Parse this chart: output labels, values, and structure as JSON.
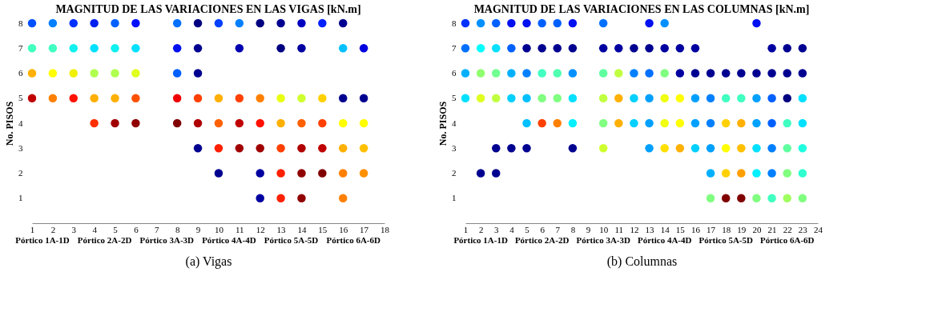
{
  "chart_data": [
    {
      "type": "scatter",
      "title": "MAGNITUD DE LAS VARIACIONES EN LAS VIGAS [kN.m]",
      "xlabel": "(a) Vigas",
      "ylabel": "No. PISOS",
      "xlim": [
        1,
        18
      ],
      "xticks": [
        1,
        2,
        3,
        4,
        5,
        6,
        7,
        8,
        9,
        10,
        11,
        12,
        13,
        14,
        15,
        16,
        17,
        18
      ],
      "ylim": [
        0,
        8
      ],
      "yticks": [
        1,
        2,
        3,
        4,
        5,
        6,
        7,
        8
      ],
      "grid": false,
      "marker": "circle",
      "annotations": [
        "Pórtico 1A-1D",
        "Pórtico 2A-2D",
        "Pórtico 3A-3D",
        "Pórtico 4A-4D",
        "Pórtico 5A-5D",
        "Pórtico 6A-6D"
      ],
      "series": [
        {
          "x": [
            1,
            1,
            1,
            1,
            2,
            2,
            2,
            2,
            3,
            3,
            3,
            3,
            4,
            4,
            4,
            4,
            4,
            5,
            5,
            5,
            5,
            5,
            6,
            6,
            6,
            6,
            6,
            8,
            8,
            8,
            8,
            8,
            9,
            9,
            9,
            9,
            9,
            9,
            10,
            10,
            10,
            10,
            10,
            11,
            11,
            11,
            11,
            11,
            12,
            12,
            12,
            12,
            12,
            12,
            13,
            13,
            13,
            13,
            13,
            13,
            13,
            14,
            14,
            14,
            14,
            14,
            14,
            14,
            15,
            15,
            15,
            15,
            15,
            16,
            16,
            16,
            16,
            16,
            16,
            16,
            17,
            17,
            17,
            17,
            17
          ],
          "values": [
            8,
            7,
            6,
            5,
            8,
            7,
            6,
            5,
            8,
            7,
            6,
            5,
            8,
            7,
            6,
            5,
            4,
            8,
            7,
            6,
            5,
            4,
            8,
            7,
            6,
            5,
            4,
            8,
            7,
            6,
            5,
            4,
            8,
            7,
            6,
            5,
            4,
            3,
            8,
            5,
            4,
            3,
            2,
            8,
            7,
            5,
            4,
            3,
            8,
            5,
            4,
            3,
            2,
            1,
            8,
            7,
            5,
            4,
            3,
            2,
            1,
            8,
            7,
            5,
            4,
            3,
            2,
            1,
            8,
            5,
            4,
            3,
            2,
            8,
            7,
            5,
            4,
            3,
            2,
            1,
            7,
            5,
            4,
            3,
            2
          ],
          "colors": [
            "#0050ff",
            "#40ffc0",
            "#ffb000",
            "#c00000",
            "#0080ff",
            "#40ffc0",
            "#ffff00",
            "#ff8000",
            "#0030ff",
            "#10f0f0",
            "#f0f000",
            "#ff1000",
            "#0020f0",
            "#00e0ff",
            "#b0ff50",
            "#ffb000",
            "#ff3000",
            "#0060ff",
            "#10f0f0",
            "#b0ff50",
            "#ffb000",
            "#a00000",
            "#0010ff",
            "#00e0ff",
            "#e0ff20",
            "#ff5000",
            "#900000",
            "#0070ff",
            "#0010f0",
            "#0060ff",
            "#f00000",
            "#800000",
            "#000080",
            "#000090",
            "#000090",
            "#ff4000",
            "#b00000",
            "#000090",
            "#0040ff",
            "#ffb000",
            "#ff6000",
            "#ff2000",
            "#000090",
            "#0080ff",
            "#0000b0",
            "#ff4000",
            "#c00000",
            "#a00000",
            "#000080",
            "#ff8000",
            "#ff1000",
            "#a00000",
            "#0000a0",
            "#0000a0",
            "#000090",
            "#000080",
            "#e8ff10",
            "#ffb000",
            "#ff4000",
            "#ff2000",
            "#ff2000",
            "#0000c0",
            "#0000a0",
            "#d0ff30",
            "#ff6000",
            "#b00000",
            "#900000",
            "#900000",
            "#0020ff",
            "#ffd000",
            "#ff4000",
            "#c00000",
            "#800000",
            "#000090",
            "#00c0ff",
            "#000090",
            "#ffff00",
            "#ffb000",
            "#ff8000",
            "#ff8000",
            "#0000e0",
            "#000090",
            "#ffff00",
            "#ffc000",
            "#ff9000"
          ]
        }
      ]
    },
    {
      "type": "scatter",
      "title": "MAGNITUD DE LAS VARIACIONES EN LAS COLUMNAS [kN.m]",
      "xlabel": "(b) Columnas",
      "ylabel": "No. PISOS",
      "xlim": [
        1,
        24
      ],
      "xticks": [
        1,
        2,
        3,
        4,
        5,
        6,
        7,
        8,
        9,
        10,
        11,
        12,
        13,
        14,
        15,
        16,
        17,
        18,
        19,
        20,
        21,
        22,
        23,
        24
      ],
      "ylim": [
        0,
        8
      ],
      "yticks": [
        1,
        2,
        3,
        4,
        5,
        6,
        7,
        8
      ],
      "grid": false,
      "marker": "circle",
      "annotations": [
        "Pórtico 1A-1D",
        "Pórtico 2A-2D",
        "Pórtico 3A-3D",
        "Pórtico 4A-4D",
        "Pórtico 5A-5D",
        "Pórtico 6A-6D"
      ],
      "series": [
        {
          "x": [
            1,
            1,
            1,
            1,
            2,
            2,
            2,
            2,
            2,
            3,
            3,
            3,
            3,
            3,
            3,
            4,
            4,
            4,
            4,
            4,
            5,
            5,
            5,
            5,
            5,
            5,
            6,
            6,
            6,
            6,
            6,
            7,
            7,
            7,
            7,
            7,
            8,
            8,
            8,
            8,
            8,
            8,
            10,
            10,
            10,
            10,
            10,
            10,
            11,
            11,
            11,
            11,
            12,
            12,
            12,
            12,
            13,
            13,
            13,
            13,
            13,
            13,
            14,
            14,
            14,
            14,
            14,
            14,
            15,
            15,
            15,
            15,
            15,
            16,
            16,
            16,
            16,
            16,
            17,
            17,
            17,
            17,
            17,
            17,
            18,
            18,
            18,
            18,
            18,
            18,
            19,
            19,
            19,
            19,
            19,
            19,
            20,
            20,
            20,
            20,
            20,
            20,
            20,
            21,
            21,
            21,
            21,
            21,
            21,
            21,
            22,
            22,
            22,
            22,
            22,
            22,
            22,
            23,
            23,
            23,
            23,
            23,
            23,
            23
          ],
          "values": [
            8,
            7,
            6,
            5,
            8,
            7,
            6,
            5,
            2,
            8,
            7,
            6,
            5,
            3,
            2,
            8,
            7,
            6,
            5,
            3,
            8,
            7,
            6,
            5,
            4,
            3,
            8,
            7,
            6,
            5,
            4,
            8,
            7,
            6,
            5,
            4,
            8,
            7,
            6,
            5,
            4,
            3,
            8,
            7,
            6,
            5,
            4,
            3,
            7,
            6,
            5,
            4,
            7,
            6,
            5,
            4,
            8,
            7,
            6,
            5,
            4,
            3,
            8,
            7,
            6,
            5,
            4,
            3,
            7,
            6,
            5,
            4,
            3,
            7,
            6,
            5,
            4,
            3,
            6,
            5,
            4,
            3,
            2,
            1,
            6,
            5,
            4,
            3,
            2,
            1,
            6,
            5,
            4,
            3,
            2,
            1,
            8,
            6,
            5,
            4,
            3,
            2,
            1,
            7,
            6,
            5,
            4,
            3,
            2,
            1,
            7,
            6,
            5,
            4,
            3,
            2,
            1,
            7,
            6,
            5,
            4,
            3,
            2,
            1
          ],
          "colors": [
            "#0030ff",
            "#0070ff",
            "#00b0ff",
            "#00e0ff",
            "#0090ff",
            "#00ffff",
            "#90ff70",
            "#e0ff20",
            "#000090",
            "#0060ff",
            "#00e0ff",
            "#70ff90",
            "#c0ff40",
            "#000090",
            "#000090",
            "#0010f0",
            "#0060ff",
            "#00b0ff",
            "#00d0ff",
            "#000090",
            "#0010f0",
            "#000090",
            "#0080ff",
            "#00c0ff",
            "#00c0ff",
            "#000090",
            "#0060ff",
            "#000090",
            "#40ffc0",
            "#80ff80",
            "#ff4000",
            "#0060ff",
            "#000090",
            "#50ffb0",
            "#80ff80",
            "#ff8000",
            "#0010f0",
            "#000090",
            "#0090ff",
            "#00e0ff",
            "#00f0ff",
            "#000090",
            "#0070ff",
            "#0000a0",
            "#60ffa0",
            "#c0ff40",
            "#80ff80",
            "#d0ff30",
            "#0000a0",
            "#c0ff40",
            "#ffb000",
            "#ffb000",
            "#000090",
            "#0080ff",
            "#00d0ff",
            "#00d0ff",
            "#0010f0",
            "#000090",
            "#0070ff",
            "#00a0ff",
            "#00a0ff",
            "#00a0ff",
            "#0090ff",
            "#0000a0",
            "#80ff80",
            "#f0ff10",
            "#f0ff10",
            "#ffe000",
            "#0000a0",
            "#0000a0",
            "#ffff00",
            "#ffff00",
            "#ffb000",
            "#0000a0",
            "#000090",
            "#00a0ff",
            "#00a0ff",
            "#00d0ff",
            "#000090",
            "#0080ff",
            "#0080ff",
            "#00a0ff",
            "#00b0ff",
            "#80ff80",
            "#000090",
            "#40ffc0",
            "#ffd000",
            "#ffff00",
            "#ffd000",
            "#800000",
            "#000090",
            "#40ffc0",
            "#ffb000",
            "#ffc000",
            "#ffa000",
            "#800000",
            "#0010f0",
            "#000090",
            "#00a0ff",
            "#00a0ff",
            "#00e0ff",
            "#00f0ff",
            "#80ff80",
            "#0000a0",
            "#000090",
            "#0060ff",
            "#0060ff",
            "#0080ff",
            "#0080ff",
            "#40ffc0",
            "#000090",
            "#000090",
            "#000080",
            "#40ffc0",
            "#60ffa0",
            "#80ff80",
            "#a0ff60",
            "#000090",
            "#000090",
            "#00e0ff",
            "#00e0ff",
            "#20ffe0",
            "#30ffd0",
            "#80ff80"
          ]
        }
      ]
    }
  ]
}
